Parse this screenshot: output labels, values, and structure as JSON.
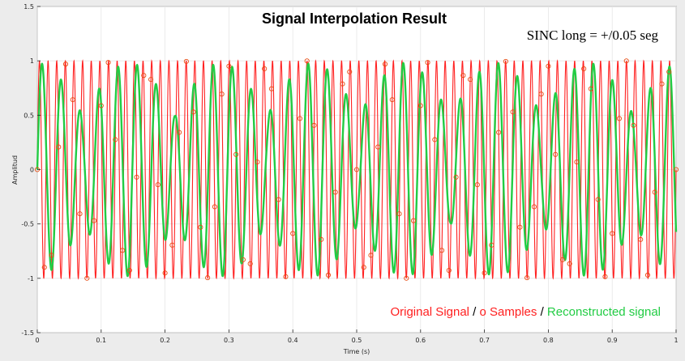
{
  "chart_data": {
    "type": "line",
    "title": "Signal Interpolation Result",
    "xlabel": "Time (s)",
    "ylabel": "Amplitud",
    "xlim": [
      0,
      1
    ],
    "ylim": [
      -1.5,
      1.5
    ],
    "grid": true,
    "x_ticks": [
      "0",
      "0.1",
      "0.2",
      "0.3",
      "0.4",
      "0.5",
      "0.6",
      "0.7",
      "0.8",
      "0.9",
      "1"
    ],
    "y_ticks": [
      "1.5",
      "1",
      "0.5",
      "0",
      "-0.5",
      "-1",
      "-1.5"
    ],
    "annotation": "SINC long = +/0.05 seg",
    "legend": {
      "placement": "bottom-right",
      "items": [
        {
          "text": "Original Signal",
          "color": "#ff2020"
        },
        {
          "text": " / ",
          "color": "#000000"
        },
        {
          "text": "o Samples",
          "color": "#ff2020"
        },
        {
          "text": " / ",
          "color": "#000000"
        },
        {
          "text": "Reconstructed signal",
          "color": "#22cc44"
        }
      ]
    },
    "series": [
      {
        "label": "Original Signal",
        "color": "#ff2020",
        "kind": "line",
        "amplitude": 1,
        "frequency_hz": 74
      },
      {
        "label": "Samples",
        "color": "#e84a10",
        "kind": "marker-circle",
        "sample_rate_hz": 90
      },
      {
        "label": "Reconstructed signal",
        "color": "#22cc44",
        "kind": "line",
        "amplitude": 1,
        "frequency_hz": 16
      }
    ]
  }
}
